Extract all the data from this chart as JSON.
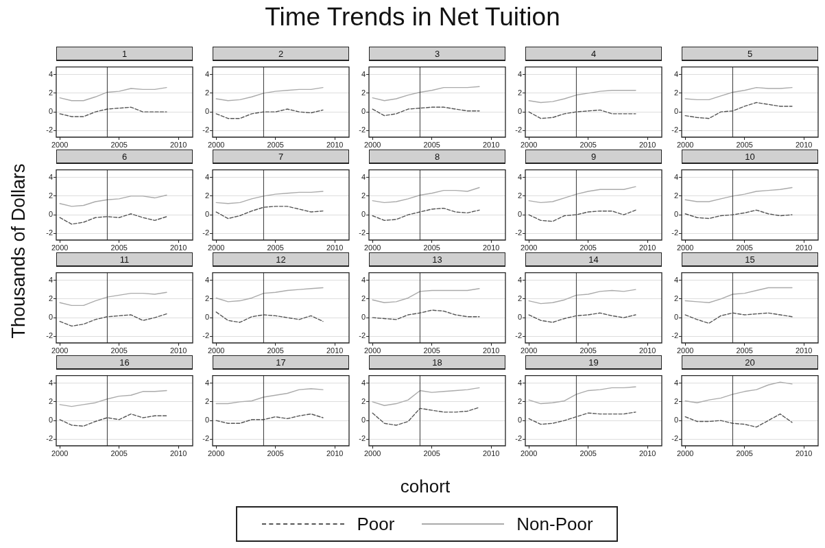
{
  "chart_data": [
    {
      "type": "line",
      "title": "1",
      "annotations": [
        "Time Trends in Net Tuition"
      ],
      "ylabel": "Thousands of Dollars",
      "legend": "bottom",
      "x": [
        2000,
        2001,
        2002,
        2003,
        2004,
        2005,
        2006,
        2007,
        2008,
        2009
      ],
      "xlim": [
        1999.7,
        2011.2
      ],
      "xticks": [
        2000,
        2005,
        2010
      ],
      "ylim": [
        -2.7,
        4.8
      ],
      "yticks": [
        -2,
        0,
        2,
        4
      ],
      "grid": "y",
      "ref_lines": [
        {
          "axis": "x",
          "value": 2004
        }
      ],
      "series": [
        {
          "name": "Poor",
          "color": "#555555",
          "line_style": "dashed",
          "values": [
            -0.2,
            -0.5,
            -0.5,
            0,
            0.3,
            0.4,
            0.5,
            0,
            0,
            0
          ]
        },
        {
          "name": "Non-Poor",
          "color": "#aaaaaa",
          "line_style": "solid",
          "values": [
            1.5,
            1.2,
            1.2,
            1.6,
            2.1,
            2.2,
            2.5,
            2.4,
            2.4,
            2.6
          ]
        }
      ]
    },
    {
      "type": "line",
      "title": "2",
      "x": [
        2000,
        2001,
        2002,
        2003,
        2004,
        2005,
        2006,
        2007,
        2008,
        2009
      ],
      "xlim": [
        1999.7,
        2011.2
      ],
      "xticks": [
        2000,
        2005,
        2010
      ],
      "ylim": [
        -2.7,
        4.8
      ],
      "yticks": [
        -2,
        0,
        2,
        4
      ],
      "grid": "y",
      "ref_lines": [
        {
          "axis": "x",
          "value": 2004
        }
      ],
      "series": [
        {
          "name": "Poor",
          "color": "#555555",
          "line_style": "dashed",
          "values": [
            -0.2,
            -0.7,
            -0.7,
            -0.2,
            0,
            0,
            0.3,
            0,
            -0.1,
            0.2
          ]
        },
        {
          "name": "Non-Poor",
          "color": "#aaaaaa",
          "line_style": "solid",
          "values": [
            1.4,
            1.2,
            1.3,
            1.6,
            2.0,
            2.2,
            2.3,
            2.4,
            2.4,
            2.6
          ]
        }
      ]
    },
    {
      "type": "line",
      "title": "3",
      "x": [
        2000,
        2001,
        2002,
        2003,
        2004,
        2005,
        2006,
        2007,
        2008,
        2009
      ],
      "xlim": [
        1999.7,
        2011.2
      ],
      "xticks": [
        2000,
        2005,
        2010
      ],
      "ylim": [
        -2.7,
        4.8
      ],
      "yticks": [
        -2,
        0,
        2,
        4
      ],
      "grid": "y",
      "ref_lines": [
        {
          "axis": "x",
          "value": 2004
        }
      ],
      "series": [
        {
          "name": "Poor",
          "color": "#555555",
          "line_style": "dashed",
          "values": [
            0.3,
            -0.4,
            -0.2,
            0.3,
            0.4,
            0.5,
            0.5,
            0.3,
            0.1,
            0.1
          ]
        },
        {
          "name": "Non-Poor",
          "color": "#aaaaaa",
          "line_style": "solid",
          "values": [
            1.5,
            1.2,
            1.4,
            1.8,
            2.1,
            2.3,
            2.6,
            2.6,
            2.6,
            2.7
          ]
        }
      ]
    },
    {
      "type": "line",
      "title": "4",
      "x": [
        2000,
        2001,
        2002,
        2003,
        2004,
        2005,
        2006,
        2007,
        2008,
        2009
      ],
      "xlim": [
        1999.7,
        2011.2
      ],
      "xticks": [
        2000,
        2005,
        2010
      ],
      "ylim": [
        -2.7,
        4.8
      ],
      "yticks": [
        -2,
        0,
        2,
        4
      ],
      "grid": "y",
      "ref_lines": [
        {
          "axis": "x",
          "value": 2004
        }
      ],
      "series": [
        {
          "name": "Poor",
          "color": "#555555",
          "line_style": "dashed",
          "values": [
            0,
            -0.7,
            -0.6,
            -0.2,
            0,
            0.1,
            0.2,
            -0.2,
            -0.2,
            -0.2
          ]
        },
        {
          "name": "Non-Poor",
          "color": "#aaaaaa",
          "line_style": "solid",
          "values": [
            1.2,
            1.0,
            1.1,
            1.4,
            1.8,
            2.0,
            2.2,
            2.3,
            2.3,
            2.3
          ]
        }
      ]
    },
    {
      "type": "line",
      "title": "5",
      "x": [
        2000,
        2001,
        2002,
        2003,
        2004,
        2005,
        2006,
        2007,
        2008,
        2009
      ],
      "xlim": [
        1999.7,
        2011.2
      ],
      "xticks": [
        2000,
        2005,
        2010
      ],
      "ylim": [
        -2.7,
        4.8
      ],
      "yticks": [
        -2,
        0,
        2,
        4
      ],
      "grid": "y",
      "ref_lines": [
        {
          "axis": "x",
          "value": 2004
        }
      ],
      "series": [
        {
          "name": "Poor",
          "color": "#555555",
          "line_style": "dashed",
          "values": [
            -0.4,
            -0.6,
            -0.7,
            0,
            0.1,
            0.6,
            1.0,
            0.8,
            0.6,
            0.6
          ]
        },
        {
          "name": "Non-Poor",
          "color": "#aaaaaa",
          "line_style": "solid",
          "values": [
            1.4,
            1.3,
            1.3,
            1.7,
            2.1,
            2.3,
            2.6,
            2.5,
            2.5,
            2.6
          ]
        }
      ]
    },
    {
      "type": "line",
      "title": "6",
      "x": [
        2000,
        2001,
        2002,
        2003,
        2004,
        2005,
        2006,
        2007,
        2008,
        2009
      ],
      "xlim": [
        1999.7,
        2011.2
      ],
      "xticks": [
        2000,
        2005,
        2010
      ],
      "ylim": [
        -2.7,
        4.8
      ],
      "yticks": [
        -2,
        0,
        2,
        4
      ],
      "grid": "y",
      "ref_lines": [
        {
          "axis": "x",
          "value": 2004
        }
      ],
      "series": [
        {
          "name": "Poor",
          "color": "#555555",
          "line_style": "dashed",
          "values": [
            -0.3,
            -1.0,
            -0.8,
            -0.3,
            -0.2,
            -0.3,
            0.1,
            -0.3,
            -0.6,
            -0.2
          ]
        },
        {
          "name": "Non-Poor",
          "color": "#aaaaaa",
          "line_style": "solid",
          "values": [
            1.2,
            0.9,
            1.0,
            1.4,
            1.6,
            1.7,
            2.0,
            2.0,
            1.8,
            2.1
          ]
        }
      ]
    },
    {
      "type": "line",
      "title": "7",
      "x": [
        2000,
        2001,
        2002,
        2003,
        2004,
        2005,
        2006,
        2007,
        2008,
        2009
      ],
      "xlim": [
        1999.7,
        2011.2
      ],
      "xticks": [
        2000,
        2005,
        2010
      ],
      "ylim": [
        -2.7,
        4.8
      ],
      "yticks": [
        -2,
        0,
        2,
        4
      ],
      "grid": "y",
      "ref_lines": [
        {
          "axis": "x",
          "value": 2004
        }
      ],
      "series": [
        {
          "name": "Poor",
          "color": "#555555",
          "line_style": "dashed",
          "values": [
            0.3,
            -0.4,
            -0.1,
            0.4,
            0.8,
            0.9,
            0.9,
            0.6,
            0.3,
            0.4
          ]
        },
        {
          "name": "Non-Poor",
          "color": "#aaaaaa",
          "line_style": "solid",
          "values": [
            1.3,
            1.2,
            1.3,
            1.7,
            2.0,
            2.2,
            2.3,
            2.4,
            2.4,
            2.5
          ]
        }
      ]
    },
    {
      "type": "line",
      "title": "8",
      "x": [
        2000,
        2001,
        2002,
        2003,
        2004,
        2005,
        2006,
        2007,
        2008,
        2009
      ],
      "xlim": [
        1999.7,
        2011.2
      ],
      "xticks": [
        2000,
        2005,
        2010
      ],
      "ylim": [
        -2.7,
        4.8
      ],
      "yticks": [
        -2,
        0,
        2,
        4
      ],
      "grid": "y",
      "ref_lines": [
        {
          "axis": "x",
          "value": 2004
        }
      ],
      "series": [
        {
          "name": "Poor",
          "color": "#555555",
          "line_style": "dashed",
          "values": [
            -0.1,
            -0.6,
            -0.5,
            0,
            0.3,
            0.6,
            0.7,
            0.3,
            0.2,
            0.5
          ]
        },
        {
          "name": "Non-Poor",
          "color": "#aaaaaa",
          "line_style": "solid",
          "values": [
            1.5,
            1.3,
            1.4,
            1.7,
            2.1,
            2.3,
            2.6,
            2.6,
            2.5,
            2.9
          ]
        }
      ]
    },
    {
      "type": "line",
      "title": "9",
      "x": [
        2000,
        2001,
        2002,
        2003,
        2004,
        2005,
        2006,
        2007,
        2008,
        2009
      ],
      "xlim": [
        1999.7,
        2011.2
      ],
      "xticks": [
        2000,
        2005,
        2010
      ],
      "ylim": [
        -2.7,
        4.8
      ],
      "yticks": [
        -2,
        0,
        2,
        4
      ],
      "grid": "y",
      "ref_lines": [
        {
          "axis": "x",
          "value": 2004
        }
      ],
      "series": [
        {
          "name": "Poor",
          "color": "#555555",
          "line_style": "dashed",
          "values": [
            0,
            -0.6,
            -0.7,
            -0.1,
            0,
            0.3,
            0.4,
            0.4,
            0,
            0.5
          ]
        },
        {
          "name": "Non-Poor",
          "color": "#aaaaaa",
          "line_style": "solid",
          "values": [
            1.5,
            1.3,
            1.4,
            1.8,
            2.2,
            2.5,
            2.7,
            2.7,
            2.7,
            3.0
          ]
        }
      ]
    },
    {
      "type": "line",
      "title": "10",
      "x": [
        2000,
        2001,
        2002,
        2003,
        2004,
        2005,
        2006,
        2007,
        2008,
        2009
      ],
      "xlim": [
        1999.7,
        2011.2
      ],
      "xticks": [
        2000,
        2005,
        2010
      ],
      "ylim": [
        -2.7,
        4.8
      ],
      "yticks": [
        -2,
        0,
        2,
        4
      ],
      "grid": "y",
      "ref_lines": [
        {
          "axis": "x",
          "value": 2004
        }
      ],
      "series": [
        {
          "name": "Poor",
          "color": "#555555",
          "line_style": "dashed",
          "values": [
            0.1,
            -0.3,
            -0.4,
            -0.1,
            0,
            0.2,
            0.5,
            0.1,
            -0.1,
            0
          ]
        },
        {
          "name": "Non-Poor",
          "color": "#aaaaaa",
          "line_style": "solid",
          "values": [
            1.6,
            1.4,
            1.4,
            1.7,
            2.0,
            2.2,
            2.5,
            2.6,
            2.7,
            2.9
          ]
        }
      ]
    },
    {
      "type": "line",
      "title": "11",
      "x": [
        2000,
        2001,
        2002,
        2003,
        2004,
        2005,
        2006,
        2007,
        2008,
        2009
      ],
      "xlim": [
        1999.7,
        2011.2
      ],
      "xticks": [
        2000,
        2005,
        2010
      ],
      "ylim": [
        -2.7,
        4.8
      ],
      "yticks": [
        -2,
        0,
        2,
        4
      ],
      "grid": "y",
      "ref_lines": [
        {
          "axis": "x",
          "value": 2004
        }
      ],
      "series": [
        {
          "name": "Poor",
          "color": "#555555",
          "line_style": "dashed",
          "values": [
            -0.4,
            -0.9,
            -0.7,
            -0.2,
            0.1,
            0.2,
            0.3,
            -0.3,
            0,
            0.4
          ]
        },
        {
          "name": "Non-Poor",
          "color": "#aaaaaa",
          "line_style": "solid",
          "values": [
            1.6,
            1.3,
            1.3,
            1.8,
            2.2,
            2.4,
            2.6,
            2.6,
            2.5,
            2.7
          ]
        }
      ]
    },
    {
      "type": "line",
      "title": "12",
      "x": [
        2000,
        2001,
        2002,
        2003,
        2004,
        2005,
        2006,
        2007,
        2008,
        2009
      ],
      "xlim": [
        1999.7,
        2011.2
      ],
      "xticks": [
        2000,
        2005,
        2010
      ],
      "ylim": [
        -2.7,
        4.8
      ],
      "yticks": [
        -2,
        0,
        2,
        4
      ],
      "grid": "y",
      "ref_lines": [
        {
          "axis": "x",
          "value": 2004
        }
      ],
      "series": [
        {
          "name": "Poor",
          "color": "#555555",
          "line_style": "dashed",
          "values": [
            0.6,
            -0.3,
            -0.5,
            0.1,
            0.3,
            0.2,
            0,
            -0.2,
            0.2,
            -0.4
          ]
        },
        {
          "name": "Non-Poor",
          "color": "#aaaaaa",
          "line_style": "solid",
          "values": [
            2.1,
            1.7,
            1.8,
            2.1,
            2.6,
            2.7,
            2.9,
            3.0,
            3.1,
            3.2
          ]
        }
      ]
    },
    {
      "type": "line",
      "title": "13",
      "x": [
        2000,
        2001,
        2002,
        2003,
        2004,
        2005,
        2006,
        2007,
        2008,
        2009
      ],
      "xlim": [
        1999.7,
        2011.2
      ],
      "xticks": [
        2000,
        2005,
        2010
      ],
      "ylim": [
        -2.7,
        4.8
      ],
      "yticks": [
        -2,
        0,
        2,
        4
      ],
      "grid": "y",
      "ref_lines": [
        {
          "axis": "x",
          "value": 2004
        }
      ],
      "series": [
        {
          "name": "Poor",
          "color": "#555555",
          "line_style": "dashed",
          "values": [
            0,
            -0.1,
            -0.2,
            0.3,
            0.5,
            0.8,
            0.7,
            0.3,
            0.1,
            0.1
          ]
        },
        {
          "name": "Non-Poor",
          "color": "#aaaaaa",
          "line_style": "solid",
          "values": [
            1.9,
            1.6,
            1.7,
            2.1,
            2.8,
            2.9,
            2.9,
            2.9,
            2.9,
            3.1
          ]
        }
      ]
    },
    {
      "type": "line",
      "title": "14",
      "x": [
        2000,
        2001,
        2002,
        2003,
        2004,
        2005,
        2006,
        2007,
        2008,
        2009
      ],
      "xlim": [
        1999.7,
        2011.2
      ],
      "xticks": [
        2000,
        2005,
        2010
      ],
      "ylim": [
        -2.7,
        4.8
      ],
      "yticks": [
        -2,
        0,
        2,
        4
      ],
      "grid": "y",
      "ref_lines": [
        {
          "axis": "x",
          "value": 2004
        }
      ],
      "series": [
        {
          "name": "Poor",
          "color": "#555555",
          "line_style": "dashed",
          "values": [
            0.3,
            -0.3,
            -0.5,
            -0.1,
            0.2,
            0.3,
            0.5,
            0.2,
            0,
            0.3
          ]
        },
        {
          "name": "Non-Poor",
          "color": "#aaaaaa",
          "line_style": "solid",
          "values": [
            1.8,
            1.5,
            1.6,
            1.9,
            2.4,
            2.5,
            2.8,
            2.9,
            2.8,
            3.0
          ]
        }
      ]
    },
    {
      "type": "line",
      "title": "15",
      "x": [
        2000,
        2001,
        2002,
        2003,
        2004,
        2005,
        2006,
        2007,
        2008,
        2009
      ],
      "xlim": [
        1999.7,
        2011.2
      ],
      "xticks": [
        2000,
        2005,
        2010
      ],
      "ylim": [
        -2.7,
        4.8
      ],
      "yticks": [
        -2,
        0,
        2,
        4
      ],
      "grid": "y",
      "ref_lines": [
        {
          "axis": "x",
          "value": 2004
        }
      ],
      "series": [
        {
          "name": "Poor",
          "color": "#555555",
          "line_style": "dashed",
          "values": [
            0.3,
            -0.2,
            -0.6,
            0.2,
            0.5,
            0.3,
            0.4,
            0.5,
            0.3,
            0.1
          ]
        },
        {
          "name": "Non-Poor",
          "color": "#aaaaaa",
          "line_style": "solid",
          "values": [
            1.8,
            1.7,
            1.6,
            2.0,
            2.5,
            2.6,
            2.9,
            3.2,
            3.2,
            3.2
          ]
        }
      ]
    },
    {
      "type": "line",
      "title": "16",
      "x": [
        2000,
        2001,
        2002,
        2003,
        2004,
        2005,
        2006,
        2007,
        2008,
        2009
      ],
      "xlim": [
        1999.7,
        2011.2
      ],
      "xticks": [
        2000,
        2005,
        2010
      ],
      "ylim": [
        -2.7,
        4.8
      ],
      "yticks": [
        -2,
        0,
        2,
        4
      ],
      "grid": "y",
      "ref_lines": [
        {
          "axis": "x",
          "value": 2004
        }
      ],
      "series": [
        {
          "name": "Poor",
          "color": "#555555",
          "line_style": "dashed",
          "values": [
            0.1,
            -0.5,
            -0.6,
            -0.1,
            0.3,
            0.1,
            0.7,
            0.3,
            0.5,
            0.5
          ]
        },
        {
          "name": "Non-Poor",
          "color": "#aaaaaa",
          "line_style": "solid",
          "values": [
            1.7,
            1.5,
            1.7,
            1.9,
            2.3,
            2.6,
            2.7,
            3.1,
            3.1,
            3.2
          ]
        }
      ]
    },
    {
      "type": "line",
      "title": "17",
      "x": [
        2000,
        2001,
        2002,
        2003,
        2004,
        2005,
        2006,
        2007,
        2008,
        2009
      ],
      "xlim": [
        1999.7,
        2011.2
      ],
      "xticks": [
        2000,
        2005,
        2010
      ],
      "ylim": [
        -2.7,
        4.8
      ],
      "yticks": [
        -2,
        0,
        2,
        4
      ],
      "grid": "y",
      "ref_lines": [
        {
          "axis": "x",
          "value": 2004
        }
      ],
      "series": [
        {
          "name": "Poor",
          "color": "#555555",
          "line_style": "dashed",
          "values": [
            0,
            -0.3,
            -0.3,
            0.1,
            0.1,
            0.4,
            0.2,
            0.5,
            0.7,
            0.3
          ]
        },
        {
          "name": "Non-Poor",
          "color": "#aaaaaa",
          "line_style": "solid",
          "values": [
            1.8,
            1.8,
            2.0,
            2.1,
            2.5,
            2.7,
            2.9,
            3.3,
            3.4,
            3.3
          ]
        }
      ]
    },
    {
      "type": "line",
      "title": "18",
      "xlabel": "cohort",
      "x": [
        2000,
        2001,
        2002,
        2003,
        2004,
        2005,
        2006,
        2007,
        2008,
        2009
      ],
      "xlim": [
        1999.7,
        2011.2
      ],
      "xticks": [
        2000,
        2005,
        2010
      ],
      "ylim": [
        -2.7,
        4.8
      ],
      "yticks": [
        -2,
        0,
        2,
        4
      ],
      "grid": "y",
      "ref_lines": [
        {
          "axis": "x",
          "value": 2004
        }
      ],
      "series": [
        {
          "name": "Poor",
          "color": "#555555",
          "line_style": "dashed",
          "values": [
            0.8,
            -0.3,
            -0.5,
            -0.1,
            1.3,
            1.1,
            0.9,
            0.9,
            1.0,
            1.4
          ]
        },
        {
          "name": "Non-Poor",
          "color": "#aaaaaa",
          "line_style": "solid",
          "values": [
            2.0,
            1.6,
            1.8,
            2.2,
            3.2,
            3.0,
            3.1,
            3.2,
            3.3,
            3.5
          ]
        }
      ]
    },
    {
      "type": "line",
      "title": "19",
      "x": [
        2000,
        2001,
        2002,
        2003,
        2004,
        2005,
        2006,
        2007,
        2008,
        2009
      ],
      "xlim": [
        1999.7,
        2011.2
      ],
      "xticks": [
        2000,
        2005,
        2010
      ],
      "ylim": [
        -2.7,
        4.8
      ],
      "yticks": [
        -2,
        0,
        2,
        4
      ],
      "grid": "y",
      "ref_lines": [
        {
          "axis": "x",
          "value": 2004
        }
      ],
      "series": [
        {
          "name": "Poor",
          "color": "#555555",
          "line_style": "dashed",
          "values": [
            0.2,
            -0.4,
            -0.3,
            0,
            0.4,
            0.8,
            0.7,
            0.7,
            0.7,
            0.9
          ]
        },
        {
          "name": "Non-Poor",
          "color": "#aaaaaa",
          "line_style": "solid",
          "values": [
            2.2,
            1.8,
            1.9,
            2.1,
            2.8,
            3.2,
            3.3,
            3.5,
            3.5,
            3.6
          ]
        }
      ]
    },
    {
      "type": "line",
      "title": "20",
      "x": [
        2000,
        2001,
        2002,
        2003,
        2004,
        2005,
        2006,
        2007,
        2008,
        2009
      ],
      "xlim": [
        1999.7,
        2011.2
      ],
      "xticks": [
        2000,
        2005,
        2010
      ],
      "ylim": [
        -2.7,
        4.8
      ],
      "yticks": [
        -2,
        0,
        2,
        4
      ],
      "grid": "y",
      "ref_lines": [
        {
          "axis": "x",
          "value": 2004
        }
      ],
      "series": [
        {
          "name": "Poor",
          "color": "#555555",
          "line_style": "dashed",
          "values": [
            0.4,
            -0.1,
            -0.1,
            0,
            -0.3,
            -0.4,
            -0.7,
            0,
            0.7,
            -0.2
          ]
        },
        {
          "name": "Non-Poor",
          "color": "#aaaaaa",
          "line_style": "solid",
          "values": [
            2.1,
            1.9,
            2.2,
            2.4,
            2.8,
            3.1,
            3.3,
            3.8,
            4.1,
            3.9
          ]
        }
      ]
    }
  ]
}
